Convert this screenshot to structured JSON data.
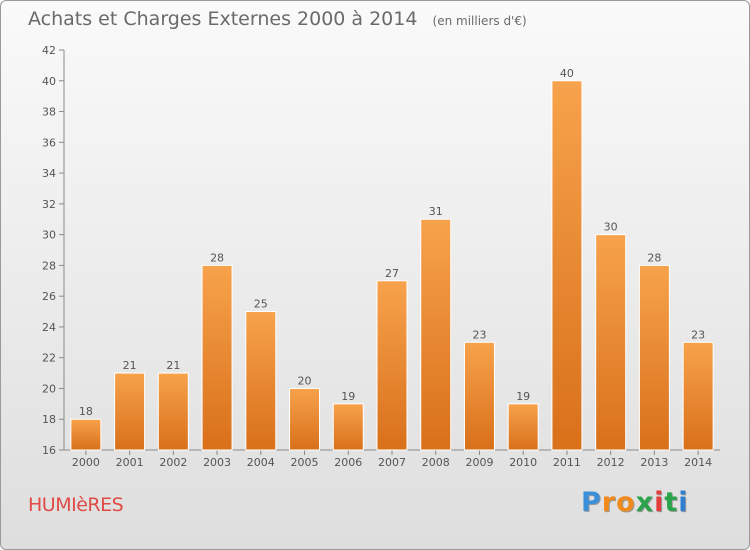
{
  "chart_data": {
    "type": "bar",
    "title": "Achats et Charges Externes 2000 à 2014",
    "unit": "(en milliers d'€)",
    "categories": [
      "2000",
      "2001",
      "2002",
      "2003",
      "2004",
      "2005",
      "2006",
      "2007",
      "2008",
      "2009",
      "2010",
      "2011",
      "2012",
      "2013",
      "2014"
    ],
    "values": [
      18,
      21,
      21,
      28,
      25,
      20,
      19,
      27,
      31,
      23,
      19,
      40,
      30,
      28,
      23
    ],
    "ylim": [
      16,
      42
    ],
    "yticks": [
      16,
      18,
      20,
      22,
      24,
      26,
      28,
      30,
      32,
      34,
      36,
      38,
      40,
      42
    ],
    "grid": false,
    "legend": "none",
    "bar_color_top": "#f7a24c",
    "bar_color_bottom": "#d9701a"
  },
  "place": "HUMIèRES",
  "logo": {
    "letters": [
      "P",
      "r",
      "o",
      "x",
      "i",
      "t",
      "i"
    ],
    "colors": [
      "#3a8fd8",
      "#f08a1c",
      "#f08a1c",
      "#2aa34a",
      "#e23c3c",
      "#2aa34a",
      "#2f7fd0"
    ]
  }
}
